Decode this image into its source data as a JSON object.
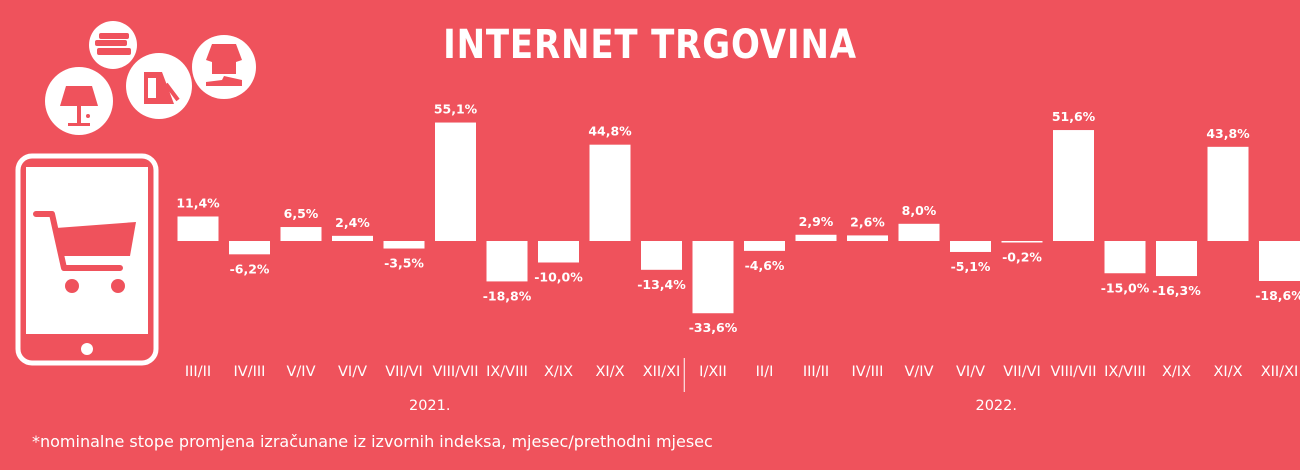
{
  "title": "INTERNET TRGOVINA",
  "footnote": "*nominalne stope promjena izračunane iz izvornih indeksa, mjesec/prethodni mjesec",
  "colors": {
    "background": "#EF525C",
    "bars": "#FFFFFF",
    "text": "#FFFFFF"
  },
  "icons": [
    "books-icon",
    "lamp-icon",
    "iron-icon",
    "clothing-icon",
    "tablet-cart-icon"
  ],
  "chart_data": {
    "type": "bar",
    "categories": [
      "III/II",
      "IV/III",
      "V/IV",
      "VI/V",
      "VII/VI",
      "VIII/VII",
      "IX/VIII",
      "X/IX",
      "XI/X",
      "XII/XI",
      "I/XII",
      "II/I",
      "III/II",
      "IV/III",
      "V/IV",
      "VI/V",
      "VII/VI",
      "VIII/VII",
      "IX/VIII",
      "X/IX",
      "XI/X",
      "XII/XI"
    ],
    "values": [
      11.4,
      -6.2,
      6.5,
      2.4,
      -3.5,
      55.1,
      -18.8,
      -10.0,
      44.8,
      -13.4,
      -33.6,
      -4.6,
      2.9,
      2.6,
      8.0,
      -5.1,
      -0.2,
      51.6,
      -15.0,
      -16.3,
      43.8,
      -18.6
    ],
    "labels": [
      "11,4%",
      "-6,2%",
      "6,5%",
      "2,4%",
      "-3,5%",
      "55,1%",
      "-18,8%",
      "-10,0%",
      "44,8%",
      "-13,4%",
      "-33,6%",
      "-4,6%",
      "2,9%",
      "2,6%",
      "8,0%",
      "-5,1%",
      "-0,2%",
      "51,6%",
      "-15,0%",
      "-16,3%",
      "43,8%",
      "-18,6%"
    ],
    "groups": [
      {
        "label": "2021.",
        "count": 10
      },
      {
        "label": "2022.",
        "count": 12
      }
    ],
    "title": "INTERNET TRGOVINA",
    "xlabel": "",
    "ylabel": "",
    "grid": false,
    "legend": "none"
  }
}
